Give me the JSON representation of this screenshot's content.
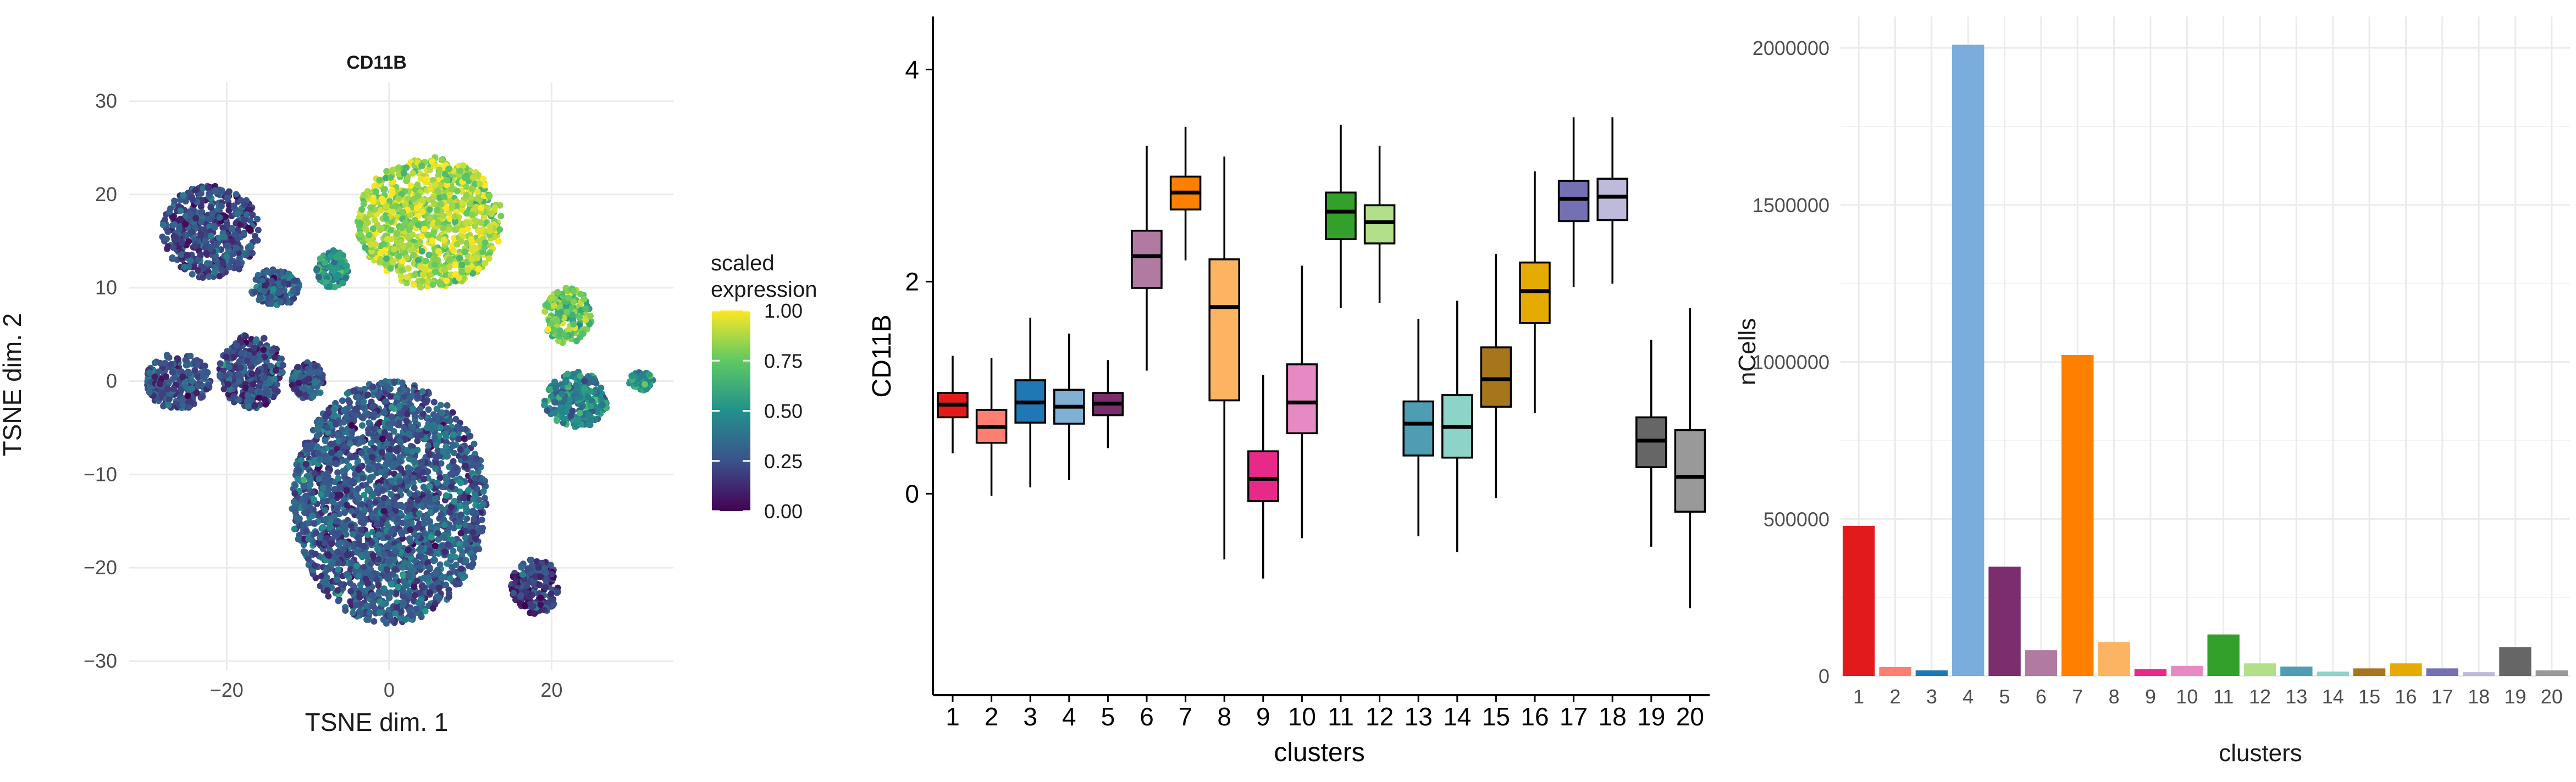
{
  "chart_data": [
    {
      "type": "scatter",
      "title": "CD11B",
      "xlabel": "TSNE dim. 1",
      "ylabel": "TSNE dim. 2",
      "xlim": [
        -32,
        35
      ],
      "ylim": [
        -31,
        32
      ],
      "xticks": [
        -20,
        0,
        20
      ],
      "yticks": [
        30,
        20,
        10,
        0,
        -10,
        -20,
        -30
      ],
      "grid": true,
      "legend": {
        "title_lines": [
          "scaled",
          "expression"
        ],
        "ticks": [
          1.0,
          0.75,
          0.5,
          0.25,
          0.0
        ],
        "tick_labels": [
          "1.00",
          "0.75",
          "0.50",
          "0.25",
          "0.00"
        ],
        "colormap": [
          "#440154",
          "#3b528b",
          "#21918c",
          "#5ec962",
          "#fde725"
        ],
        "placement": "right"
      },
      "clusters": [
        {
          "center": [
            0,
            -13
          ],
          "spread": [
            12,
            13
          ],
          "expression": 0.28
        },
        {
          "center": [
            5,
            17
          ],
          "spread": [
            9,
            7
          ],
          "expression": 0.85
        },
        {
          "center": [
            -22,
            16
          ],
          "spread": [
            6,
            5
          ],
          "expression": 0.22
        },
        {
          "center": [
            -26,
            0
          ],
          "spread": [
            4,
            3
          ],
          "expression": 0.25
        },
        {
          "center": [
            -17,
            1
          ],
          "spread": [
            4,
            4
          ],
          "expression": 0.22
        },
        {
          "center": [
            -10,
            0
          ],
          "spread": [
            2,
            2
          ],
          "expression": 0.25
        },
        {
          "center": [
            -14,
            10
          ],
          "spread": [
            3,
            2
          ],
          "expression": 0.3
        },
        {
          "center": [
            22,
            7
          ],
          "spread": [
            3,
            3
          ],
          "expression": 0.75
        },
        {
          "center": [
            18,
            -22
          ],
          "spread": [
            3,
            3
          ],
          "expression": 0.18
        },
        {
          "center": [
            23,
            -2
          ],
          "spread": [
            4,
            3
          ],
          "expression": 0.45
        },
        {
          "center": [
            31,
            0
          ],
          "spread": [
            1.5,
            1
          ],
          "expression": 0.5
        },
        {
          "center": [
            -7,
            12
          ],
          "spread": [
            2,
            2
          ],
          "expression": 0.5
        }
      ]
    },
    {
      "type": "box",
      "xlabel": "clusters",
      "ylabel": "CD11B",
      "ylim": [
        -1.9,
        4.5
      ],
      "yticks": [
        0,
        2,
        4
      ],
      "categories": [
        "1",
        "2",
        "3",
        "4",
        "5",
        "6",
        "7",
        "8",
        "9",
        "10",
        "11",
        "12",
        "13",
        "14",
        "15",
        "16",
        "17",
        "18",
        "19",
        "20"
      ],
      "colors": [
        "#e31a1c",
        "#fb8072",
        "#1f78b4",
        "#80b1d3",
        "#7b2d6e",
        "#b07aa1",
        "#ff7f00",
        "#fdb462",
        "#e7298a",
        "#e78ac3",
        "#33a02c",
        "#b2df8a",
        "#4f9db3",
        "#8dd3c7",
        "#a6761d",
        "#e6ab02",
        "#7570b3",
        "#bebada",
        "#666666",
        "#999999"
      ],
      "boxes": [
        {
          "low": 0.38,
          "q1": 0.72,
          "median": 0.84,
          "q3": 0.95,
          "high": 1.3
        },
        {
          "low": -0.02,
          "q1": 0.48,
          "median": 0.63,
          "q3": 0.79,
          "high": 1.28
        },
        {
          "low": 0.06,
          "q1": 0.67,
          "median": 0.86,
          "q3": 1.07,
          "high": 1.66
        },
        {
          "low": 0.13,
          "q1": 0.66,
          "median": 0.82,
          "q3": 0.98,
          "high": 1.51
        },
        {
          "low": 0.43,
          "q1": 0.74,
          "median": 0.85,
          "q3": 0.95,
          "high": 1.26
        },
        {
          "low": 1.16,
          "q1": 1.94,
          "median": 2.24,
          "q3": 2.48,
          "high": 3.28
        },
        {
          "low": 2.2,
          "q1": 2.68,
          "median": 2.84,
          "q3": 2.99,
          "high": 3.46
        },
        {
          "low": -0.62,
          "q1": 0.88,
          "median": 1.76,
          "q3": 2.21,
          "high": 3.18
        },
        {
          "low": -0.8,
          "q1": -0.07,
          "median": 0.14,
          "q3": 0.4,
          "high": 1.12
        },
        {
          "low": -0.42,
          "q1": 0.57,
          "median": 0.86,
          "q3": 1.22,
          "high": 2.15
        },
        {
          "low": 1.75,
          "q1": 2.4,
          "median": 2.66,
          "q3": 2.84,
          "high": 3.48
        },
        {
          "low": 1.8,
          "q1": 2.36,
          "median": 2.56,
          "q3": 2.72,
          "high": 3.28
        },
        {
          "low": -0.4,
          "q1": 0.36,
          "median": 0.66,
          "q3": 0.87,
          "high": 1.65
        },
        {
          "low": -0.55,
          "q1": 0.34,
          "median": 0.63,
          "q3": 0.93,
          "high": 1.82
        },
        {
          "low": -0.04,
          "q1": 0.82,
          "median": 1.08,
          "q3": 1.38,
          "high": 2.26
        },
        {
          "low": 0.76,
          "q1": 1.61,
          "median": 1.91,
          "q3": 2.18,
          "high": 3.04
        },
        {
          "low": 1.95,
          "q1": 2.57,
          "median": 2.78,
          "q3": 2.95,
          "high": 3.55
        },
        {
          "low": 1.98,
          "q1": 2.58,
          "median": 2.8,
          "q3": 2.97,
          "high": 3.55
        },
        {
          "low": -0.5,
          "q1": 0.25,
          "median": 0.5,
          "q3": 0.72,
          "high": 1.45
        },
        {
          "low": -1.08,
          "q1": -0.17,
          "median": 0.16,
          "q3": 0.6,
          "high": 1.75
        }
      ]
    },
    {
      "type": "bar",
      "xlabel": "clusters",
      "ylabel": "nCells",
      "ylim": [
        0,
        2100000
      ],
      "yticks": [
        0,
        500000,
        1000000,
        1500000,
        2000000
      ],
      "ytick_labels": [
        "0",
        "500000",
        "1000000",
        "1500000",
        "2000000"
      ],
      "grid": true,
      "categories": [
        "1",
        "2",
        "3",
        "4",
        "5",
        "6",
        "7",
        "8",
        "9",
        "10",
        "11",
        "12",
        "13",
        "14",
        "15",
        "16",
        "17",
        "18",
        "19",
        "20"
      ],
      "values": [
        478000,
        28000,
        18000,
        2010000,
        348000,
        82000,
        1022000,
        108000,
        22000,
        32000,
        132000,
        40000,
        30000,
        14000,
        24000,
        40000,
        24000,
        12000,
        92000,
        18000
      ],
      "colors": [
        "#e31a1c",
        "#fb8072",
        "#1f78b4",
        "#7aaddc",
        "#7b2d6e",
        "#b07aa1",
        "#ff7f00",
        "#fdb462",
        "#e7298a",
        "#e78ac3",
        "#33a02c",
        "#b2df8a",
        "#4f9db3",
        "#8dd3c7",
        "#a6761d",
        "#e6ab02",
        "#7570b3",
        "#bebada",
        "#666666",
        "#999999"
      ]
    }
  ]
}
